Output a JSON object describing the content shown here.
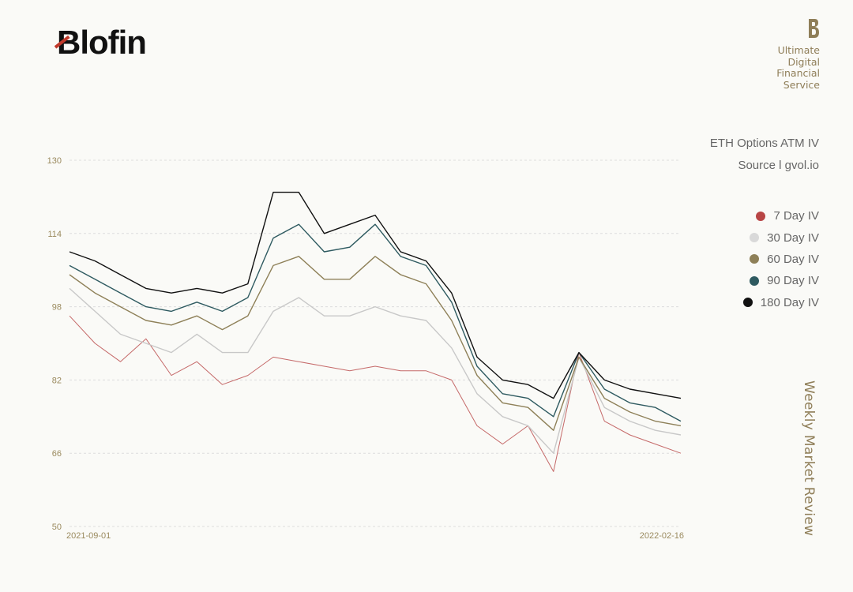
{
  "brand": {
    "logo_text": "Blofin",
    "tagline_lines": [
      "Ultimate",
      "Digital",
      "Financial",
      "Service"
    ]
  },
  "side_label": "Weekly Market Review",
  "colors": {
    "accent_gold": "#8f7e58",
    "logo_red": "#c0392b"
  },
  "chart_data": {
    "type": "line",
    "title": "ETH Options ATM IV",
    "source": "Source l gvol.io",
    "xlabel": "",
    "ylabel": "",
    "x_range": [
      "2021-09-01",
      "2022-02-16"
    ],
    "x_tick_labels": [
      "2021-09-01",
      "2022-02-16"
    ],
    "ylim": [
      50,
      130
    ],
    "y_ticks": [
      50,
      66,
      82,
      98,
      114,
      130
    ],
    "grid": "horizontal dashed",
    "legend_placement": "right",
    "dates": [
      "2021-09-01",
      "2021-09-08",
      "2021-09-15",
      "2021-09-22",
      "2021-09-29",
      "2021-10-06",
      "2021-10-13",
      "2021-10-20",
      "2021-10-27",
      "2021-11-03",
      "2021-11-10",
      "2021-11-17",
      "2021-11-24",
      "2021-12-01",
      "2021-12-08",
      "2021-12-15",
      "2021-12-22",
      "2021-12-29",
      "2022-01-05",
      "2022-01-12",
      "2022-01-19",
      "2022-01-26",
      "2022-02-02",
      "2022-02-09",
      "2022-02-16"
    ],
    "series": [
      {
        "name": "7 Day IV",
        "color": "#b84545",
        "values": [
          96,
          90,
          86,
          91,
          83,
          86,
          81,
          83,
          87,
          86,
          85,
          84,
          85,
          84,
          84,
          82,
          72,
          68,
          72,
          62,
          88,
          73,
          70,
          68,
          66
        ]
      },
      {
        "name": "30 Day IV",
        "color": "#c8c8c8",
        "values": [
          102,
          97,
          92,
          90,
          88,
          92,
          88,
          88,
          97,
          100,
          96,
          96,
          98,
          96,
          95,
          89,
          79,
          74,
          72,
          66,
          87,
          76,
          73,
          71,
          70
        ]
      },
      {
        "name": "60 Day IV",
        "color": "#8e8058",
        "values": [
          105,
          101,
          98,
          95,
          94,
          96,
          93,
          96,
          107,
          109,
          104,
          104,
          109,
          105,
          103,
          95,
          83,
          77,
          76,
          71,
          87,
          78,
          75,
          73,
          72
        ]
      },
      {
        "name": "90 Day IV",
        "color": "#2e5a60",
        "values": [
          107,
          104,
          101,
          98,
          97,
          99,
          97,
          100,
          113,
          116,
          110,
          111,
          116,
          109,
          107,
          99,
          85,
          79,
          78,
          74,
          88,
          80,
          77,
          76,
          73
        ]
      },
      {
        "name": "180 Day IV",
        "color": "#111111",
        "values": [
          110,
          108,
          105,
          102,
          101,
          102,
          101,
          103,
          123,
          123,
          114,
          116,
          118,
          110,
          108,
          101,
          87,
          82,
          81,
          78,
          88,
          82,
          80,
          79,
          78
        ]
      }
    ]
  }
}
